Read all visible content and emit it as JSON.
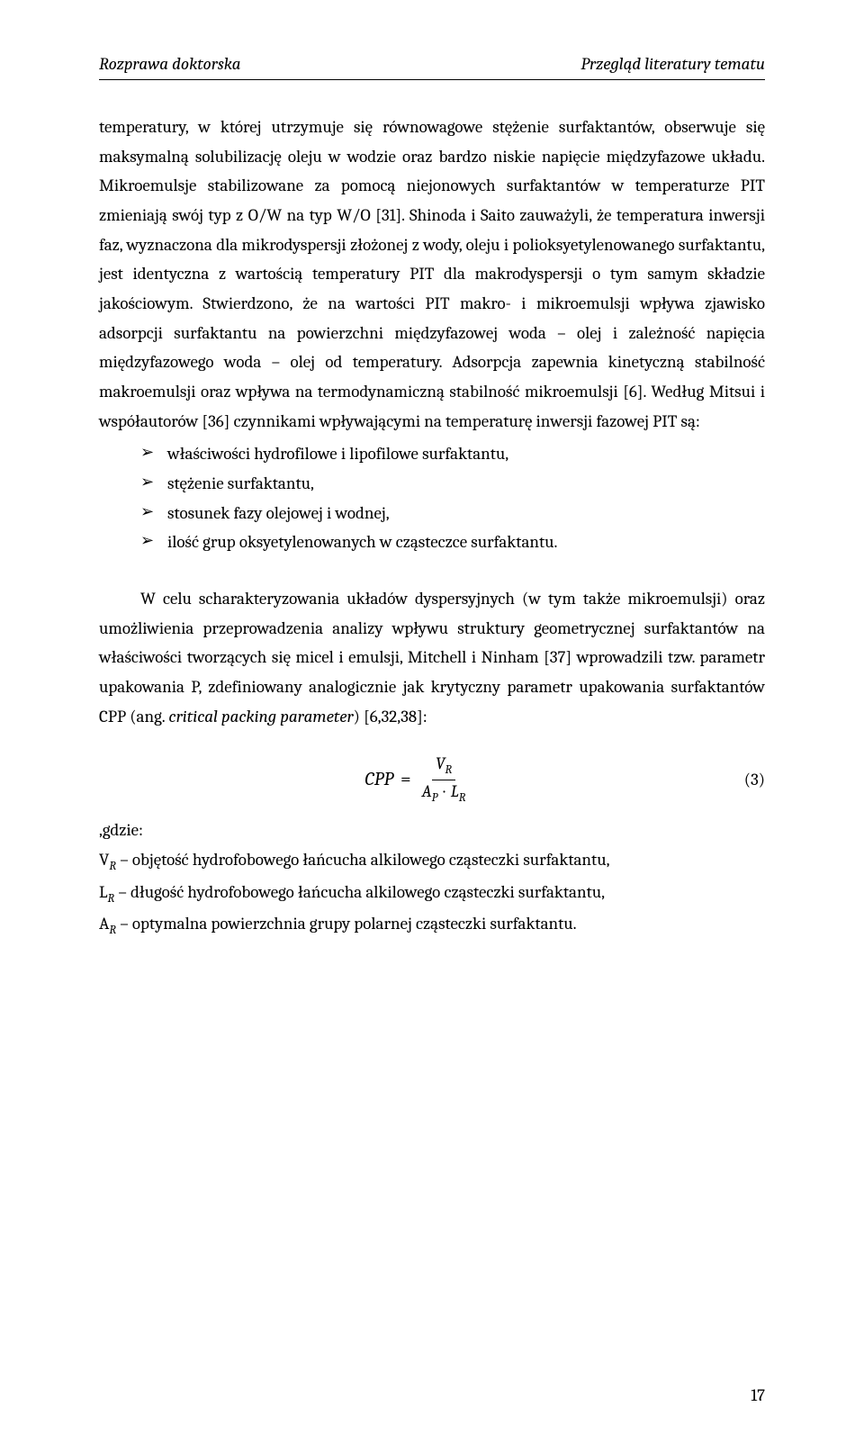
{
  "header": {
    "left": "Rozprawa doktorska",
    "right": "Przegląd literatury tematu"
  },
  "para1": "temperatury, w której utrzymuje się równowagowe stężenie surfaktantów, obserwuje się maksymalną solubilizację oleju w wodzie oraz bardzo niskie napięcie międzyfazowe układu. Mikroemulsje stabilizowane za pomocą niejonowych surfaktantów w temperaturze PIT zmieniają swój typ z O/W na typ W/O [31]. Shinoda i Saito zauważyli, że temperatura inwersji faz, wyznaczona dla mikrodyspersji złożonej z wody, oleju i polioksyetylenowanego surfaktantu, jest identyczna z wartością temperatury PIT dla makrodyspersji o tym samym składzie jakościowym. Stwierdzono, że na wartości PIT makro- i mikroemulsji wpływa zjawisko adsorpcji surfaktantu na powierzchni międzyfazowej woda – olej i zależność napięcia międzyfazowego woda – olej od temperatury. Adsorpcja zapewnia kinetyczną stabilność makroemulsji oraz wpływa na termodynamiczną stabilność mikroemulsji [6]. Według Mitsui i współautorów [36] czynnikami wpływającymi na temperaturę inwersji fazowej PIT są:",
  "bullets": [
    "właściwości hydrofilowe i lipofilowe surfaktantu,",
    "stężenie surfaktantu,",
    "stosunek fazy olejowej i wodnej,",
    "ilość grup oksyetylenowanych w cząsteczce surfaktantu."
  ],
  "para2_a": "W celu scharakteryzowania układów dyspersyjnych (w tym także mikroemulsji) oraz umożliwienia przeprowadzenia analizy wpływu struktury geometrycznej surfaktantów na właściwości tworzących się micel i emulsji, Mitchell i Ninham [37] wprowadzili tzw. parametr upakowania P, zdefiniowany analogicznie jak krytyczny parametr upakowania surfaktantów CPP (ang. ",
  "para2_em": "critical packing parameter",
  "para2_b": ") [6,32,38]:",
  "equation": {
    "lhs": "CPP",
    "eq": "=",
    "num_var": "V",
    "num_sub": "R",
    "den_a_var": "A",
    "den_a_sub": "P",
    "den_dot": "·",
    "den_b_var": "L",
    "den_b_sub": "R",
    "number": "(3)"
  },
  "defs": {
    "lead": ",gdzie:",
    "line1_a": "V",
    "line1_sub": "R",
    "line1_b": " – objętość hydrofobowego łańcucha alkilowego cząsteczki surfaktantu,",
    "line2_a": "L",
    "line2_sub": "R",
    "line2_b": " – długość hydrofobowego łańcucha alkilowego cząsteczki surfaktantu,",
    "line3_a": "A",
    "line3_sub": "R",
    "line3_b": " – optymalna powierzchnia grupy polarnej cząsteczki surfaktantu."
  },
  "page_number": "17"
}
